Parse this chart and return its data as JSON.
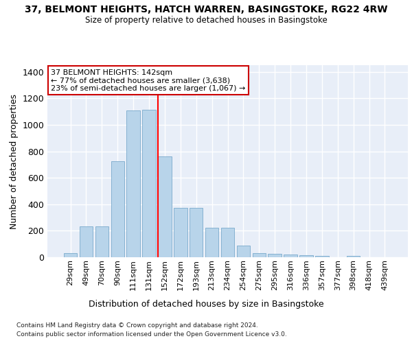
{
  "title1": "37, BELMONT HEIGHTS, HATCH WARREN, BASINGSTOKE, RG22 4RW",
  "title2": "Size of property relative to detached houses in Basingstoke",
  "xlabel": "Distribution of detached houses by size in Basingstoke",
  "ylabel": "Number of detached properties",
  "categories": [
    "29sqm",
    "49sqm",
    "70sqm",
    "90sqm",
    "111sqm",
    "131sqm",
    "152sqm",
    "172sqm",
    "193sqm",
    "213sqm",
    "234sqm",
    "254sqm",
    "275sqm",
    "295sqm",
    "316sqm",
    "336sqm",
    "357sqm",
    "377sqm",
    "398sqm",
    "418sqm",
    "439sqm"
  ],
  "values": [
    30,
    235,
    235,
    725,
    1110,
    1115,
    760,
    375,
    375,
    225,
    225,
    90,
    30,
    25,
    20,
    15,
    10,
    0,
    10,
    0,
    0
  ],
  "bar_color": "#b8d4ea",
  "bar_edge_color": "#7aaacb",
  "background_color": "#e8eef8",
  "grid_color": "#ffffff",
  "red_line_x": 5.57,
  "annotation_text": "37 BELMONT HEIGHTS: 142sqm\n← 77% of detached houses are smaller (3,638)\n23% of semi-detached houses are larger (1,067) →",
  "annotation_box_color": "#ffffff",
  "annotation_box_edge": "#cc0000",
  "footnote1": "Contains HM Land Registry data © Crown copyright and database right 2024.",
  "footnote2": "Contains public sector information licensed under the Open Government Licence v3.0.",
  "ylim": [
    0,
    1450
  ],
  "yticks": [
    0,
    200,
    400,
    600,
    800,
    1000,
    1200,
    1400
  ]
}
